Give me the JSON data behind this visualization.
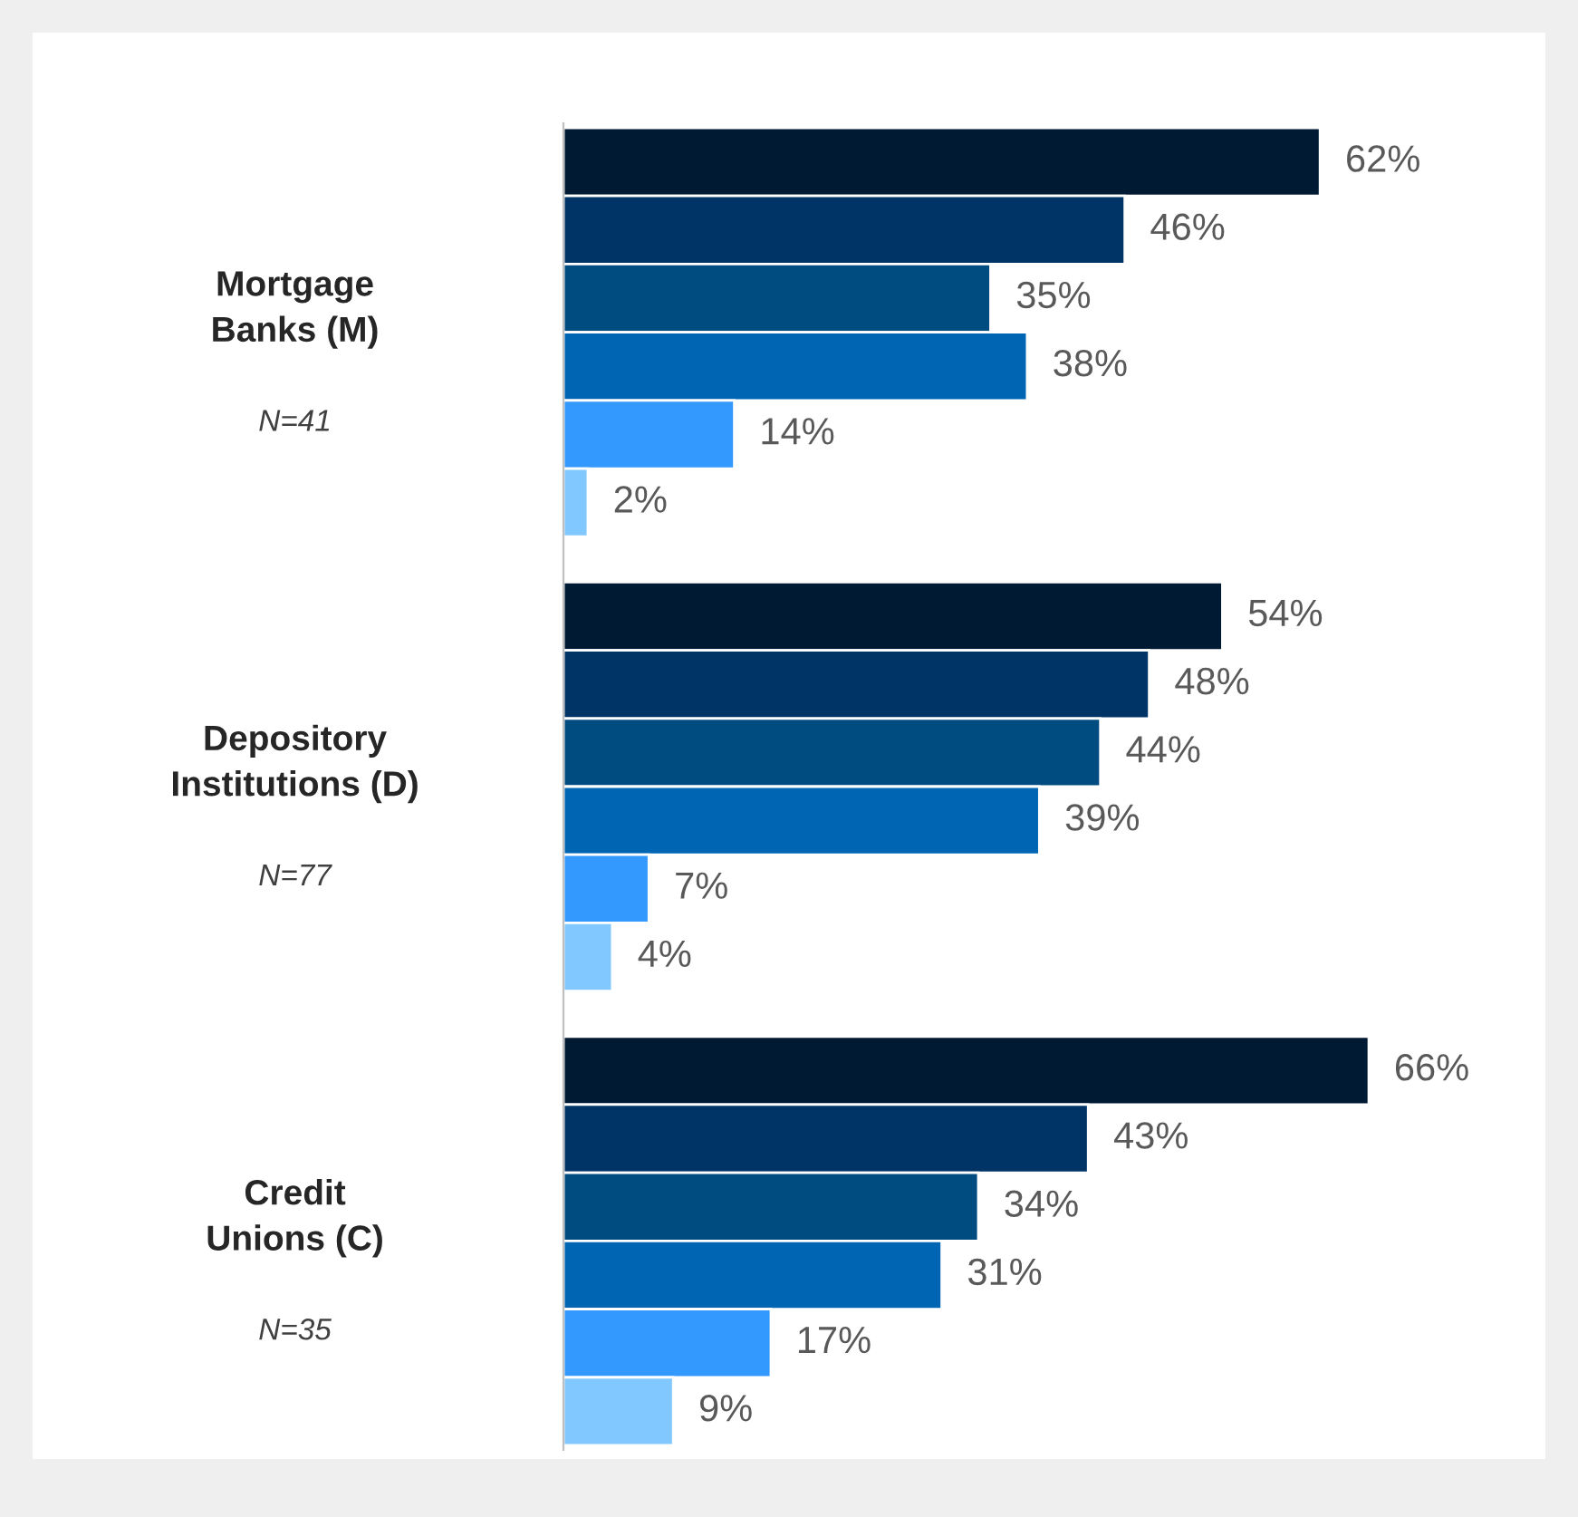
{
  "chart_data": {
    "type": "bar",
    "orientation": "horizontal",
    "categories": [
      "Mortgage\nBanks (M)",
      "Depository\nInstitutions (D)",
      "Credit\nUnions (C)"
    ],
    "annotations": [
      "N=41",
      "N=77",
      "N=35"
    ],
    "series": [
      {
        "color": "#001a33",
        "values": [
          62,
          54,
          66
        ],
        "value_labels": [
          "62%",
          "54%",
          "66%"
        ]
      },
      {
        "color": "#003366",
        "values": [
          46,
          48,
          43
        ],
        "value_labels": [
          "46%",
          "48%",
          "43%"
        ]
      },
      {
        "color": "#004c80",
        "values": [
          35,
          44,
          34
        ],
        "value_labels": [
          "35%",
          "44%",
          "34%"
        ]
      },
      {
        "color": "#0066b3",
        "values": [
          38,
          39,
          31
        ],
        "value_labels": [
          "38%",
          "39%",
          "31%"
        ]
      },
      {
        "color": "#3399ff",
        "values": [
          14,
          7,
          17
        ],
        "value_labels": [
          "14%",
          "7%",
          "17%"
        ]
      },
      {
        "color": "#80c8ff",
        "values": [
          2,
          4,
          9
        ],
        "value_labels": [
          "2%",
          "4%",
          "9%"
        ]
      }
    ],
    "legend": false
  }
}
